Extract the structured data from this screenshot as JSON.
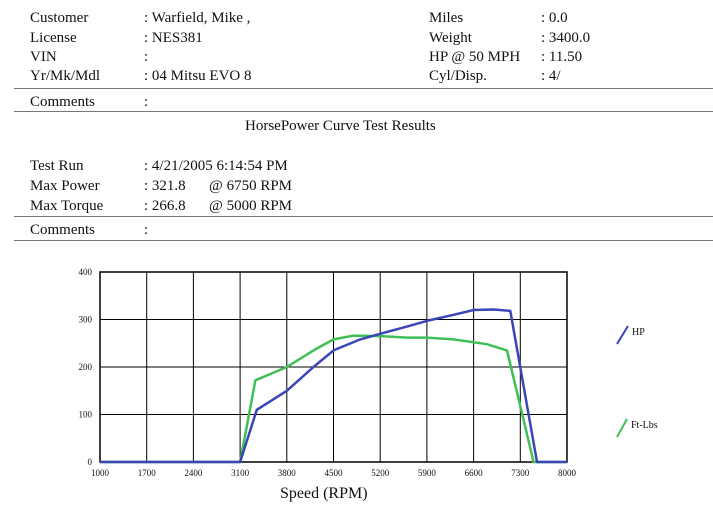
{
  "customer": {
    "rows": [
      {
        "label": "Customer",
        "value": ": Warfield, Mike ,"
      },
      {
        "label": "License",
        "value": ": NES381"
      },
      {
        "label": "VIN",
        "value": ":"
      },
      {
        "label": "Yr/Mk/Mdl",
        "value": ": 04 Mitsu EVO 8"
      }
    ],
    "right_rows": [
      {
        "label": "Miles",
        "value": ": 0.0"
      },
      {
        "label": "Weight",
        "value": ": 3400.0"
      },
      {
        "label": "HP @ 50 MPH",
        "value": ": 11.50"
      },
      {
        "label": "Cyl/Disp.",
        "value": ": 4/"
      }
    ],
    "comments_label": "Comments",
    "comments_value": ":"
  },
  "report_title": "HorsePower Curve Test Results",
  "test": {
    "test_run_label": "Test Run",
    "test_run_value": ": 4/21/2005 6:14:54 PM",
    "max_power_label": "Max Power",
    "max_power_value": ": 321.8",
    "max_power_rpm": "@ 6750  RPM",
    "max_torque_label": "Max Torque",
    "max_torque_value": ": 266.8",
    "max_torque_rpm": "@ 5000  RPM",
    "comments_label": "Comments",
    "comments_value": ":"
  },
  "chart_data": {
    "type": "line",
    "xlabel": "Speed (RPM)",
    "ylabel": "",
    "xlim": [
      1000,
      8000
    ],
    "ylim": [
      0,
      400
    ],
    "x_ticks": [
      1000,
      1700,
      2400,
      3100,
      3800,
      4500,
      5200,
      5900,
      6600,
      7300,
      8000
    ],
    "y_ticks": [
      0,
      100,
      200,
      300,
      400
    ],
    "grid": true,
    "legend_position": "right",
    "series": [
      {
        "name": "HP",
        "color": "#3a45b8",
        "points": [
          [
            1000,
            0
          ],
          [
            3100,
            0
          ],
          [
            3350,
            110
          ],
          [
            3800,
            150
          ],
          [
            4200,
            200
          ],
          [
            4500,
            235
          ],
          [
            4900,
            258
          ],
          [
            5200,
            270
          ],
          [
            5600,
            285
          ],
          [
            5900,
            297
          ],
          [
            6300,
            310
          ],
          [
            6600,
            320
          ],
          [
            6900,
            321
          ],
          [
            7150,
            318
          ],
          [
            7550,
            0
          ],
          [
            8000,
            0
          ]
        ]
      },
      {
        "name": "Ft-Lbs",
        "color": "#3fbf55",
        "points": [
          [
            1000,
            0
          ],
          [
            3100,
            0
          ],
          [
            3330,
            172
          ],
          [
            3800,
            200
          ],
          [
            4200,
            235
          ],
          [
            4500,
            258
          ],
          [
            4800,
            266
          ],
          [
            5200,
            265
          ],
          [
            5600,
            262
          ],
          [
            5900,
            262
          ],
          [
            6300,
            258
          ],
          [
            6800,
            248
          ],
          [
            7100,
            235
          ],
          [
            7500,
            0
          ],
          [
            8000,
            0
          ]
        ]
      }
    ]
  }
}
